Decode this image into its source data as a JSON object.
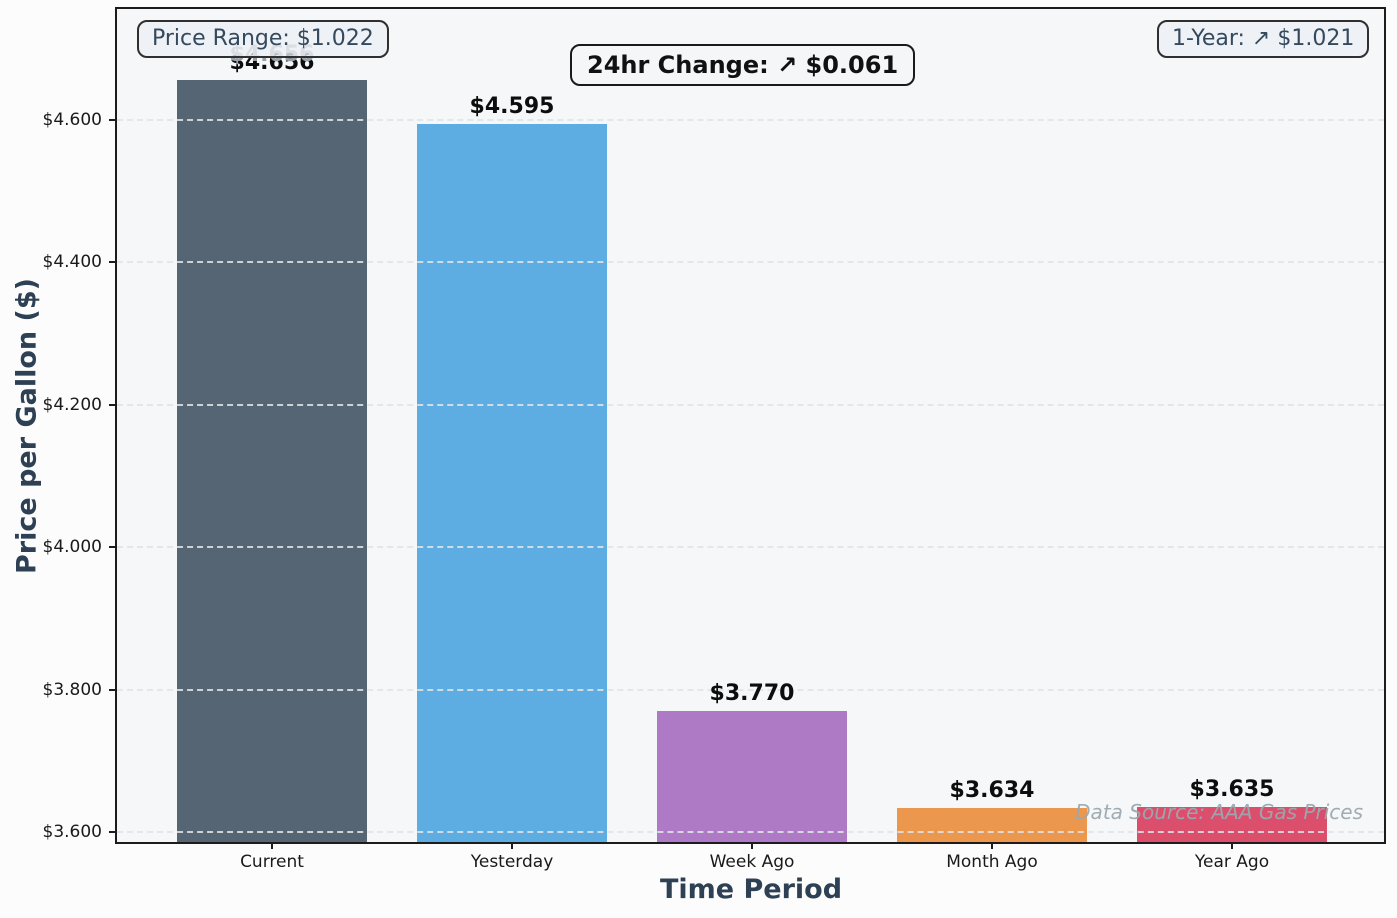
{
  "chart_data": {
    "type": "bar",
    "categories": [
      "Current",
      "Yesterday",
      "Week Ago",
      "Month Ago",
      "Year Ago"
    ],
    "values": [
      4.656,
      4.595,
      3.77,
      3.634,
      3.635
    ],
    "bar_labels": [
      "$4.656",
      "$4.595",
      "$3.770",
      "$3.634",
      "$3.635"
    ],
    "bar_colors": [
      "#566573",
      "#5DADE2",
      "#AF7AC5",
      "#EB984E",
      "#DC4F6C"
    ],
    "title": "",
    "xlabel": "Time Period",
    "ylabel": "Price per Gallon ($)",
    "ylim": [
      3.586,
      4.756
    ],
    "yticks": [
      3.6,
      3.8,
      4.0,
      4.2,
      4.4,
      4.6
    ],
    "ytick_labels": [
      "$3.600",
      "$3.800",
      "$4.000",
      "$4.200",
      "$4.400",
      "$4.600"
    ],
    "grid": "horizontal-dashed",
    "legend": "none"
  },
  "annotations": {
    "price_range": "Price Range: $1.022",
    "change_24hr": "24hr Change: ↗ $0.061",
    "one_year": "1-Year: ↗ $1.021",
    "data_source": "Data Source: AAA Gas Prices"
  },
  "colors": {
    "axis_label_text": "#2e4053",
    "badge_text": "#34495e",
    "tick_text": "#1a1a1a",
    "gridline": "#e2e5e8",
    "plot_background": "#f6f7f8",
    "figure_background": "#fcfcfd",
    "plot_border": "#1c1c1c",
    "source_text": "#9aa8b0"
  }
}
